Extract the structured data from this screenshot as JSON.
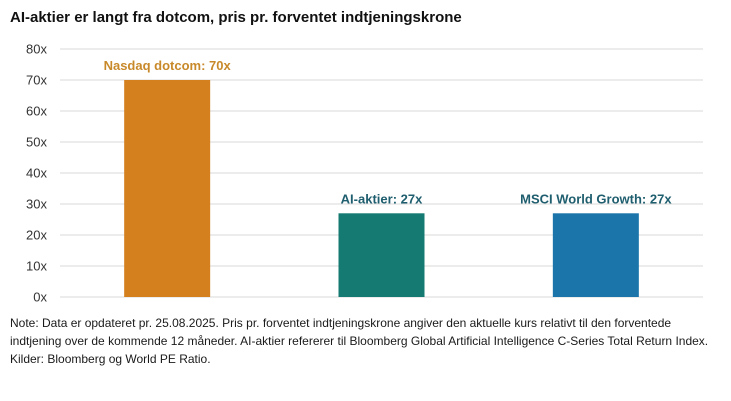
{
  "chart_data": {
    "type": "bar",
    "title": "AI-aktier er langt fra dotcom, pris pr. forventet indtjeningskrone",
    "categories": [
      "Nasdaq dotcom",
      "AI-aktier",
      "MSCI World Growth"
    ],
    "values": [
      70,
      27,
      27
    ],
    "data_labels": [
      "Nasdaq dotcom: 70x",
      "AI-aktier: 27x",
      "MSCI World Growth: 27x"
    ],
    "colors": [
      "#d4801f",
      "#157a72",
      "#1b75aa"
    ],
    "label_colors": [
      "#c8892a",
      "#1f5e6e",
      "#1f5e6e"
    ],
    "ylim": [
      0,
      80
    ],
    "yticks": [
      0,
      10,
      20,
      30,
      40,
      50,
      60,
      70,
      80
    ],
    "ytick_labels": [
      "0x",
      "10x",
      "20x",
      "30x",
      "40x",
      "50x",
      "60x",
      "70x",
      "80x"
    ],
    "grid": true,
    "xlabel": "",
    "ylabel": ""
  },
  "notes": {
    "note": "Note: Data er opdateret pr. 25.08.2025. Pris pr. forventet indtjeningskrone angiver den aktuelle kurs relativt til den forventede indtjening over de kommende 12 måneder. AI-aktier refererer til Bloomberg Global Artificial Intelligence C-Series Total Return Index.",
    "sources": "Kilder: Bloomberg og World PE Ratio."
  }
}
